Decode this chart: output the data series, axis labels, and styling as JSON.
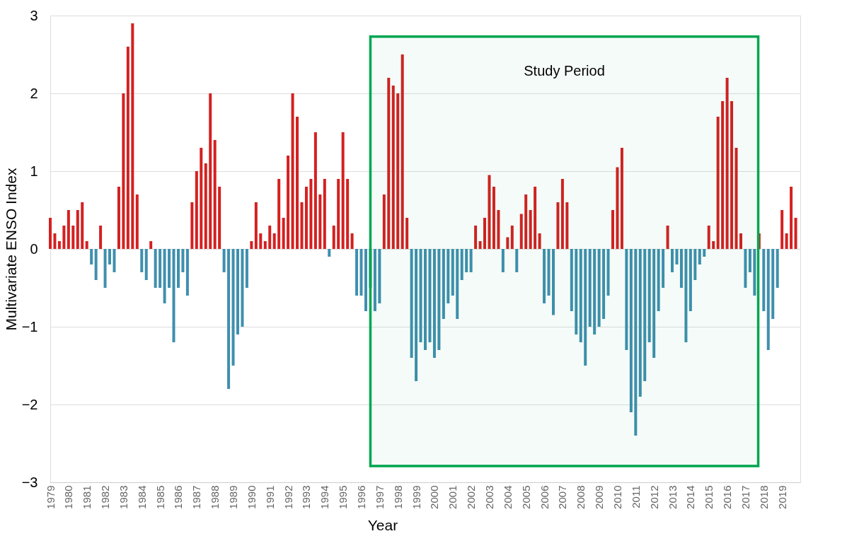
{
  "chart_data": {
    "type": "bar",
    "xlabel": "Year",
    "ylabel": "Multivariate ENSO Index",
    "x": [
      1979,
      1979.25,
      1979.5,
      1979.75,
      1980,
      1980.25,
      1980.5,
      1980.75,
      1981,
      1981.25,
      1981.5,
      1981.75,
      1982,
      1982.25,
      1982.5,
      1982.75,
      1983,
      1983.25,
      1983.5,
      1983.75,
      1984,
      1984.25,
      1984.5,
      1984.75,
      1985,
      1985.25,
      1985.5,
      1985.75,
      1986,
      1986.25,
      1986.5,
      1986.75,
      1987,
      1987.25,
      1987.5,
      1987.75,
      1988,
      1988.25,
      1988.5,
      1988.75,
      1989,
      1989.25,
      1989.5,
      1989.75,
      1990,
      1990.25,
      1990.5,
      1990.75,
      1991,
      1991.25,
      1991.5,
      1991.75,
      1992,
      1992.25,
      1992.5,
      1992.75,
      1993,
      1993.25,
      1993.5,
      1993.75,
      1994,
      1994.25,
      1994.5,
      1994.75,
      1995,
      1995.25,
      1995.5,
      1995.75,
      1996,
      1996.25,
      1996.5,
      1996.75,
      1997,
      1997.25,
      1997.5,
      1997.75,
      1998,
      1998.25,
      1998.5,
      1998.75,
      1999,
      1999.25,
      1999.5,
      1999.75,
      2000,
      2000.25,
      2000.5,
      2000.75,
      2001,
      2001.25,
      2001.5,
      2001.75,
      2002,
      2002.25,
      2002.5,
      2002.75,
      2003,
      2003.25,
      2003.5,
      2003.75,
      2004,
      2004.25,
      2004.5,
      2004.75,
      2005,
      2005.25,
      2005.5,
      2005.75,
      2006,
      2006.25,
      2006.5,
      2006.75,
      2007,
      2007.25,
      2007.5,
      2007.75,
      2008,
      2008.25,
      2008.5,
      2008.75,
      2009,
      2009.25,
      2009.5,
      2009.75,
      2010,
      2010.25,
      2010.5,
      2010.75,
      2011,
      2011.25,
      2011.5,
      2011.75,
      2012,
      2012.25,
      2012.5,
      2012.75,
      2013,
      2013.25,
      2013.5,
      2013.75,
      2014,
      2014.25,
      2014.5,
      2014.75,
      2015,
      2015.25,
      2015.5,
      2015.75,
      2016,
      2016.25,
      2016.5,
      2016.75,
      2017,
      2017.25,
      2017.5,
      2017.75,
      2018,
      2018.25,
      2018.5,
      2018.75,
      2019,
      2019.25,
      2019.5,
      2019.75
    ],
    "values": [
      0.4,
      0.2,
      0.1,
      0.3,
      0.5,
      0.3,
      0.5,
      0.6,
      0.1,
      -0.2,
      -0.4,
      0.3,
      -0.5,
      -0.2,
      -0.3,
      0.8,
      2.0,
      2.6,
      2.9,
      0.7,
      -0.3,
      -0.4,
      0.1,
      -0.5,
      -0.5,
      -0.7,
      -0.5,
      -1.2,
      -0.5,
      -0.3,
      -0.6,
      0.6,
      1.0,
      1.3,
      1.1,
      2.0,
      1.4,
      0.8,
      -0.3,
      -1.8,
      -1.5,
      -1.1,
      -1.0,
      -0.5,
      0.1,
      0.6,
      0.2,
      0.1,
      0.3,
      0.2,
      0.9,
      0.4,
      1.2,
      2.0,
      1.7,
      0.6,
      0.8,
      0.9,
      1.5,
      0.7,
      0.9,
      -0.1,
      0.3,
      0.9,
      1.5,
      0.9,
      0.2,
      -0.6,
      -0.6,
      -0.8,
      -0.5,
      -0.8,
      -0.7,
      0.7,
      2.2,
      2.1,
      2.0,
      2.5,
      0.4,
      -1.4,
      -1.7,
      -1.2,
      -1.3,
      -1.2,
      -1.4,
      -1.3,
      -0.9,
      -0.7,
      -0.6,
      -0.9,
      -0.4,
      -0.3,
      -0.3,
      0.3,
      0.1,
      0.4,
      0.95,
      0.8,
      0.5,
      -0.3,
      0.15,
      0.3,
      -0.3,
      0.45,
      0.7,
      0.5,
      0.8,
      0.2,
      -0.7,
      -0.6,
      -0.85,
      0.6,
      0.9,
      0.6,
      -0.8,
      -1.1,
      -1.2,
      -1.5,
      -1.0,
      -1.1,
      -1.0,
      -0.9,
      -0.6,
      0.5,
      1.05,
      1.3,
      -1.3,
      -2.1,
      -2.4,
      -1.9,
      -1.7,
      -1.2,
      -1.4,
      -0.8,
      -0.5,
      0.3,
      -0.3,
      -0.2,
      -0.5,
      -1.2,
      -0.8,
      -0.4,
      -0.2,
      -0.1,
      0.3,
      0.1,
      1.7,
      1.9,
      2.2,
      1.9,
      1.3,
      0.2,
      -0.5,
      -0.3,
      -0.6,
      0.2,
      -0.8,
      -1.3,
      -0.9,
      -0.5,
      0.5,
      0.2,
      0.8,
      0.4
    ],
    "colors": [
      "#d42020",
      "#d42020",
      "#d42020",
      "#d42020",
      "#d42020",
      "#d42020",
      "#d42020",
      "#d42020",
      "#d42020",
      "#3f8fae",
      "#3f8fae",
      "#d42020",
      "#3f8fae",
      "#3f8fae",
      "#3f8fae",
      "#d42020",
      "#d42020",
      "#d42020",
      "#d42020",
      "#d42020",
      "#3f8fae",
      "#3f8fae",
      "#d42020",
      "#3f8fae",
      "#3f8fae",
      "#3f8fae",
      "#3f8fae",
      "#3f8fae",
      "#3f8fae",
      "#3f8fae",
      "#3f8fae",
      "#d42020",
      "#d42020",
      "#d42020",
      "#d42020",
      "#d42020",
      "#d42020",
      "#d42020",
      "#3f8fae",
      "#3f8fae",
      "#3f8fae",
      "#3f8fae",
      "#3f8fae",
      "#3f8fae",
      "#d42020",
      "#d42020",
      "#d42020",
      "#d42020",
      "#d42020",
      "#d42020",
      "#d42020",
      "#d42020",
      "#d42020",
      "#d42020",
      "#d42020",
      "#d42020",
      "#d42020",
      "#d42020",
      "#d42020",
      "#d42020",
      "#d42020",
      "#3f8fae",
      "#d42020",
      "#d42020",
      "#d42020",
      "#d42020",
      "#d42020",
      "#3f8fae",
      "#3f8fae",
      "#3f8fae",
      "#3f8fae",
      "#3f8fae",
      "#3f8fae",
      "#d42020",
      "#d42020",
      "#d42020",
      "#d42020",
      "#d42020",
      "#d42020",
      "#3f8fae",
      "#3f8fae",
      "#3f8fae",
      "#3f8fae",
      "#3f8fae",
      "#3f8fae",
      "#3f8fae",
      "#3f8fae",
      "#3f8fae",
      "#3f8fae",
      "#3f8fae",
      "#3f8fae",
      "#3f8fae",
      "#3f8fae",
      "#d42020",
      "#d42020",
      "#d42020",
      "#d42020",
      "#d42020",
      "#d42020",
      "#3f8fae",
      "#d42020",
      "#d42020",
      "#3f8fae",
      "#d42020",
      "#d42020",
      "#d42020",
      "#d42020",
      "#d42020",
      "#3f8fae",
      "#3f8fae",
      "#3f8fae",
      "#d42020",
      "#d42020",
      "#d42020",
      "#3f8fae",
      "#3f8fae",
      "#3f8fae",
      "#3f8fae",
      "#3f8fae",
      "#3f8fae",
      "#3f8fae",
      "#3f8fae",
      "#3f8fae",
      "#d42020",
      "#d42020",
      "#d42020",
      "#3f8fae",
      "#3f8fae",
      "#3f8fae",
      "#3f8fae",
      "#3f8fae",
      "#3f8fae",
      "#3f8fae",
      "#3f8fae",
      "#3f8fae",
      "#d42020",
      "#3f8fae",
      "#3f8fae",
      "#3f8fae",
      "#3f8fae",
      "#3f8fae",
      "#3f8fae",
      "#3f8fae",
      "#3f8fae",
      "#d42020",
      "#d42020",
      "#d42020",
      "#d42020",
      "#d42020",
      "#d42020",
      "#d42020",
      "#d42020",
      "#3f8fae",
      "#3f8fae",
      "#3f8fae",
      "#d42020",
      "#3f8fae",
      "#3f8fae",
      "#3f8fae",
      "#3f8fae",
      "#d42020",
      "#d42020",
      "#d42020",
      "#d42020"
    ],
    "xlim": [
      1979,
      2020
    ],
    "xticks": [
      1979,
      1980,
      1981,
      1982,
      1983,
      1984,
      1985,
      1986,
      1987,
      1988,
      1989,
      1990,
      1991,
      1992,
      1993,
      1994,
      1995,
      1996,
      1997,
      1998,
      1999,
      2000,
      2001,
      2002,
      2003,
      2004,
      2005,
      2006,
      2007,
      2008,
      2009,
      2010,
      2011,
      2012,
      2013,
      2014,
      2015,
      2016,
      2017,
      2018,
      2019
    ],
    "ylim": [
      -3,
      3
    ],
    "yticks": [
      -3,
      -2,
      -1,
      0,
      1,
      2,
      3
    ],
    "grid": "y",
    "bands": [
      {
        "axis": "x",
        "from": 1996.5,
        "to": 2017.7,
        "label": "Study Period",
        "color": "#00a550"
      }
    ]
  }
}
